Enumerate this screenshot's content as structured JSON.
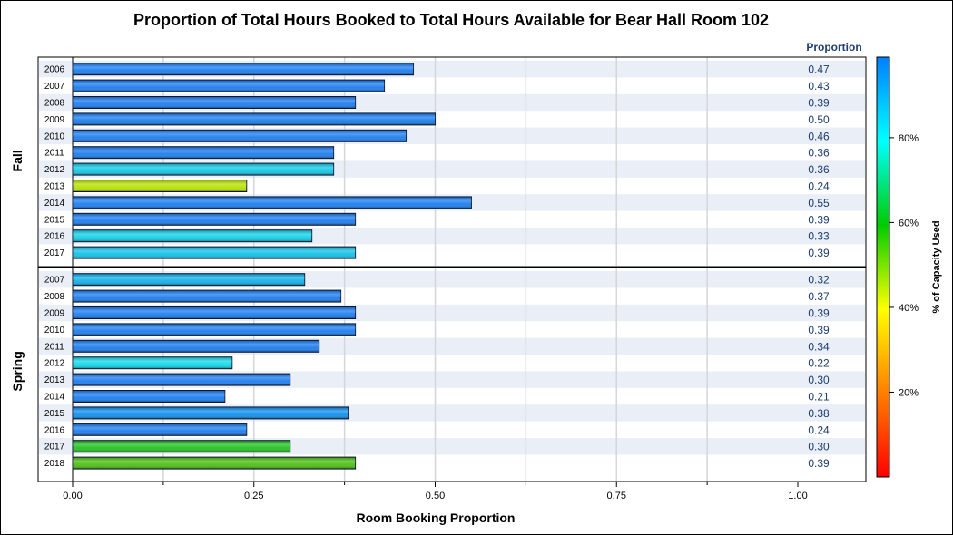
{
  "chart_data": {
    "type": "bar",
    "orientation": "horizontal",
    "title": "Proportion of Total Hours Booked to Total Hours Available for Bear Hall Room 102",
    "xlabel": "Room Booking Proportion",
    "value_column_header": "Proportion",
    "xlim": [
      0,
      1.0
    ],
    "x_ticks": [
      "0.00",
      "0.25",
      "0.50",
      "0.75",
      "1.00"
    ],
    "grid": true,
    "colorbar": {
      "label": "% of Capacity Used",
      "ticks": [
        "20%",
        "40%",
        "60%",
        "80%"
      ],
      "colors": [
        "#ff0000",
        "#ff7f00",
        "#ffff00",
        "#00cc00",
        "#00ffff",
        "#007fff"
      ]
    },
    "groups": [
      {
        "name": "Fall",
        "rows": [
          {
            "year": "2006",
            "value": 0.47,
            "label": "0.47",
            "color": "#1a7cf0"
          },
          {
            "year": "2007",
            "value": 0.43,
            "label": "0.43",
            "color": "#1a7cf0"
          },
          {
            "year": "2008",
            "value": 0.39,
            "label": "0.39",
            "color": "#1a7cf0"
          },
          {
            "year": "2009",
            "value": 0.5,
            "label": "0.50",
            "color": "#1a7cf0"
          },
          {
            "year": "2010",
            "value": 0.46,
            "label": "0.46",
            "color": "#1a7cf0"
          },
          {
            "year": "2011",
            "value": 0.36,
            "label": "0.36",
            "color": "#1a7cf0"
          },
          {
            "year": "2012",
            "value": 0.36,
            "label": "0.36",
            "color": "#10c8e8"
          },
          {
            "year": "2013",
            "value": 0.24,
            "label": "0.24",
            "color": "#b8e000"
          },
          {
            "year": "2014",
            "value": 0.55,
            "label": "0.55",
            "color": "#1a7cf0"
          },
          {
            "year": "2015",
            "value": 0.39,
            "label": "0.39",
            "color": "#1a7cf0"
          },
          {
            "year": "2016",
            "value": 0.33,
            "label": "0.33",
            "color": "#10d0e8"
          },
          {
            "year": "2017",
            "value": 0.39,
            "label": "0.39",
            "color": "#10c0e8"
          }
        ]
      },
      {
        "name": "Spring",
        "rows": [
          {
            "year": "2007",
            "value": 0.32,
            "label": "0.32",
            "color": "#10b0ea"
          },
          {
            "year": "2008",
            "value": 0.37,
            "label": "0.37",
            "color": "#1a7cf0"
          },
          {
            "year": "2009",
            "value": 0.39,
            "label": "0.39",
            "color": "#1a7cf0"
          },
          {
            "year": "2010",
            "value": 0.39,
            "label": "0.39",
            "color": "#1a7cf0"
          },
          {
            "year": "2011",
            "value": 0.34,
            "label": "0.34",
            "color": "#1a7cf0"
          },
          {
            "year": "2012",
            "value": 0.22,
            "label": "0.22",
            "color": "#10d8ea"
          },
          {
            "year": "2013",
            "value": 0.3,
            "label": "0.30",
            "color": "#1a7cf0"
          },
          {
            "year": "2014",
            "value": 0.21,
            "label": "0.21",
            "color": "#1a7cf0"
          },
          {
            "year": "2015",
            "value": 0.38,
            "label": "0.38",
            "color": "#1090ee"
          },
          {
            "year": "2016",
            "value": 0.24,
            "label": "0.24",
            "color": "#1a7cf0"
          },
          {
            "year": "2017",
            "value": 0.3,
            "label": "0.30",
            "color": "#22c020"
          },
          {
            "year": "2018",
            "value": 0.39,
            "label": "0.39",
            "color": "#4cc010"
          }
        ]
      }
    ]
  }
}
